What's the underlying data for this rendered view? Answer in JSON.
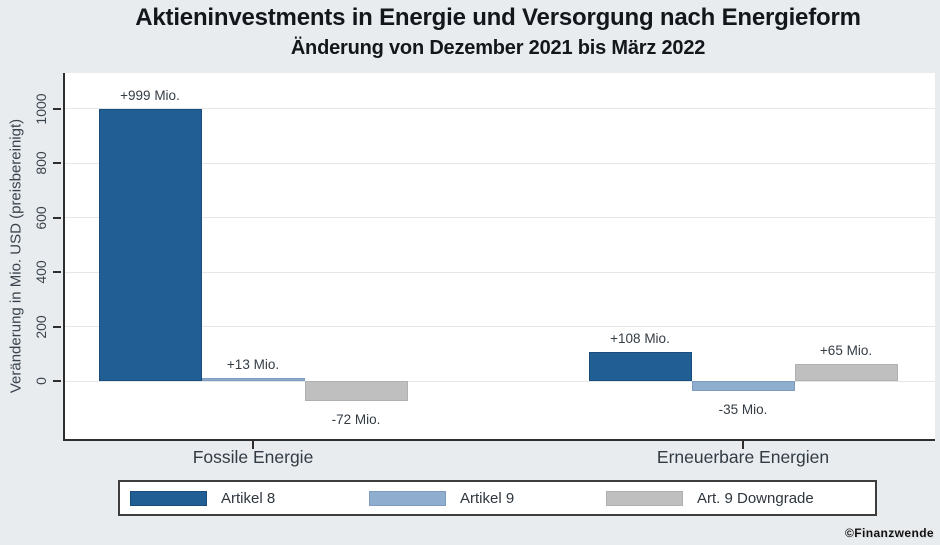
{
  "title": "Aktieninvestments in Energie und Versorgung nach Energieform",
  "subtitle": "Änderung von Dezember 2021 bis März 2022",
  "watermark": "©Finanzwende",
  "chart_data": {
    "type": "bar",
    "title": "Aktieninvestments in Energie und Versorgung nach Energieform",
    "subtitle": "Änderung von Dezember 2021 bis März 2022",
    "ylabel": "Veränderung in Mio. USD (preisbereinigt)",
    "xlabel": "",
    "categories": [
      "Fossile Energie",
      "Erneuerbare Energien"
    ],
    "series": [
      {
        "name": "Artikel 8",
        "color": "#215e94",
        "border_color": "#194d7d",
        "values": [
          999,
          108
        ],
        "labels": [
          "+999 Mio.",
          "+108 Mio."
        ]
      },
      {
        "name": "Artikel 9",
        "color": "#8fadce",
        "border_color": "#7e9cc0",
        "values": [
          13,
          -35
        ],
        "labels": [
          "+13 Mio.",
          "-35 Mio."
        ]
      },
      {
        "name": "Art. 9 Downgrade",
        "color": "#bfbfbf",
        "border_color": "#b0b0b0",
        "values": [
          -72,
          65
        ],
        "labels": [
          "-72 Mio.",
          "+65 Mio."
        ]
      }
    ],
    "y_ticks": [
      0,
      200,
      400,
      600,
      800,
      1000
    ],
    "ylim": [
      -211,
      1132
    ],
    "grid": true,
    "legend_position": "bottom"
  }
}
